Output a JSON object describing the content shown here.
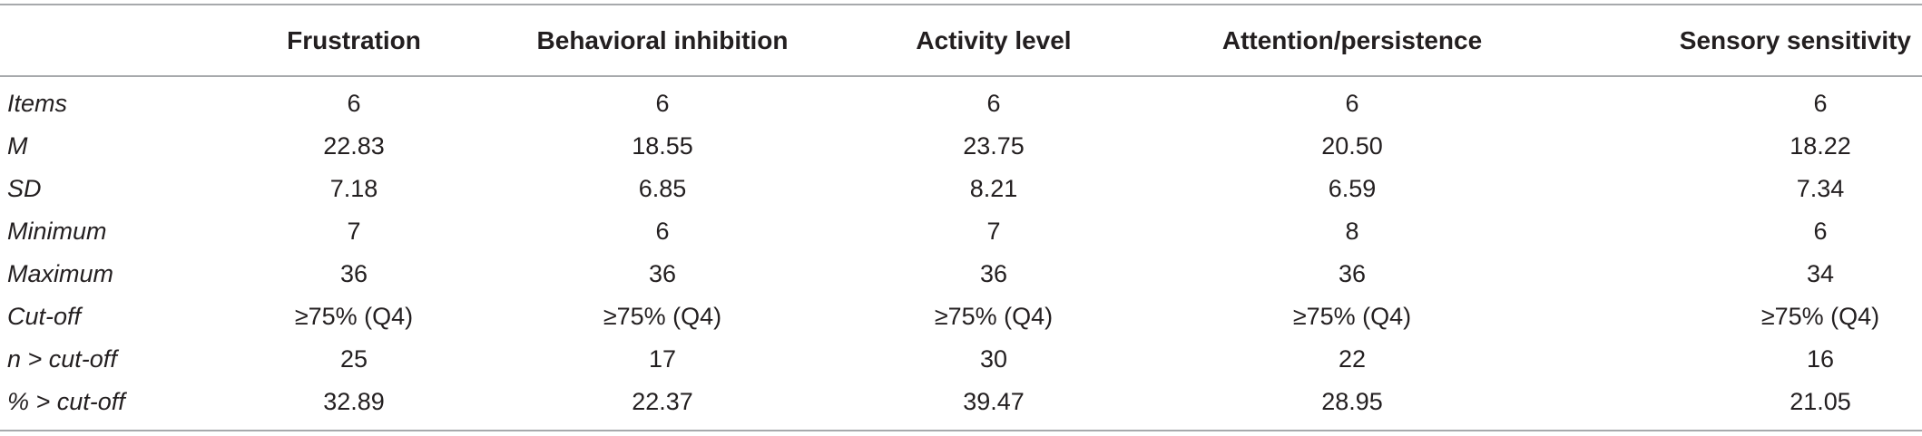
{
  "table": {
    "columns": [
      "",
      "Frustration",
      "Behavioral inhibition",
      "Activity level",
      "Attention/persistence",
      "Sensory sensitivity"
    ],
    "rows": [
      {
        "label": "Items",
        "values": [
          "6",
          "6",
          "6",
          "6",
          "6"
        ]
      },
      {
        "label": "M",
        "values": [
          "22.83",
          "18.55",
          "23.75",
          "20.50",
          "18.22"
        ]
      },
      {
        "label": "SD",
        "values": [
          "7.18",
          "6.85",
          "8.21",
          "6.59",
          "7.34"
        ]
      },
      {
        "label": "Minimum",
        "values": [
          "7",
          "6",
          "7",
          "8",
          "6"
        ]
      },
      {
        "label": "Maximum",
        "values": [
          "36",
          "36",
          "36",
          "36",
          "34"
        ]
      },
      {
        "label": "Cut-off",
        "values": [
          "≥75% (Q4)",
          "≥75% (Q4)",
          "≥75% (Q4)",
          "≥75% (Q4)",
          "≥75% (Q4)"
        ]
      },
      {
        "label": "n > cut-off",
        "values": [
          "25",
          "17",
          "30",
          "22",
          "16"
        ]
      },
      {
        "label": "% > cut-off",
        "values": [
          "32.89",
          "22.37",
          "39.47",
          "28.95",
          "21.05"
        ]
      }
    ]
  }
}
